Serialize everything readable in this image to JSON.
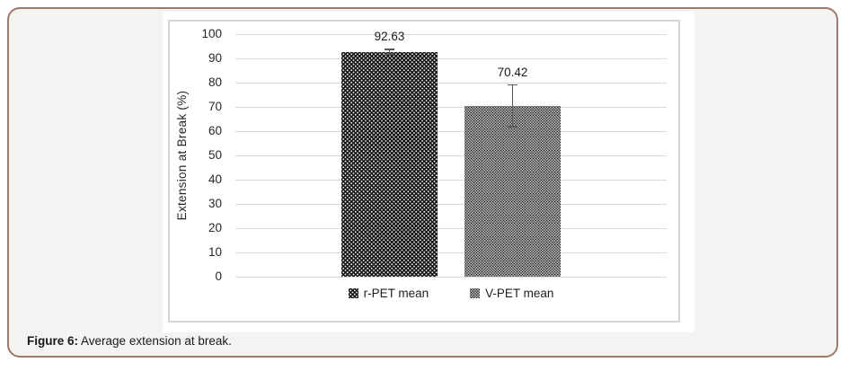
{
  "figure": {
    "caption_label": "Figure 6:",
    "caption_text": "Average extension at break."
  },
  "chart_data": {
    "type": "bar",
    "title": "",
    "xlabel": "",
    "ylabel": "Extension at Break (%)",
    "ylim": [
      0,
      100
    ],
    "yticks": [
      0,
      10,
      20,
      30,
      40,
      50,
      60,
      70,
      80,
      90,
      100
    ],
    "grid": true,
    "legend_position": "bottom",
    "categories": [
      ""
    ],
    "series": [
      {
        "name": "r-PET mean",
        "values": [
          92.63
        ],
        "data_label": "92.63",
        "error": 1.0,
        "pattern": "white-dots-on-black",
        "fill": "#161616",
        "dot_color": "#ffffff"
      },
      {
        "name": "V-PET mean",
        "values": [
          70.42
        ],
        "data_label": "70.42",
        "error": 8.6,
        "pattern": "black-dots-on-white",
        "fill": "#ffffff",
        "dot_color": "#1a1a1a"
      }
    ]
  },
  "colors": {
    "frame_border": "#a1786c",
    "frame_background": "#f4f3f2",
    "panel_border": "#d6d6d6",
    "gridline": "#d9d9d9",
    "error_bar": "#595959",
    "text": "#262626"
  }
}
